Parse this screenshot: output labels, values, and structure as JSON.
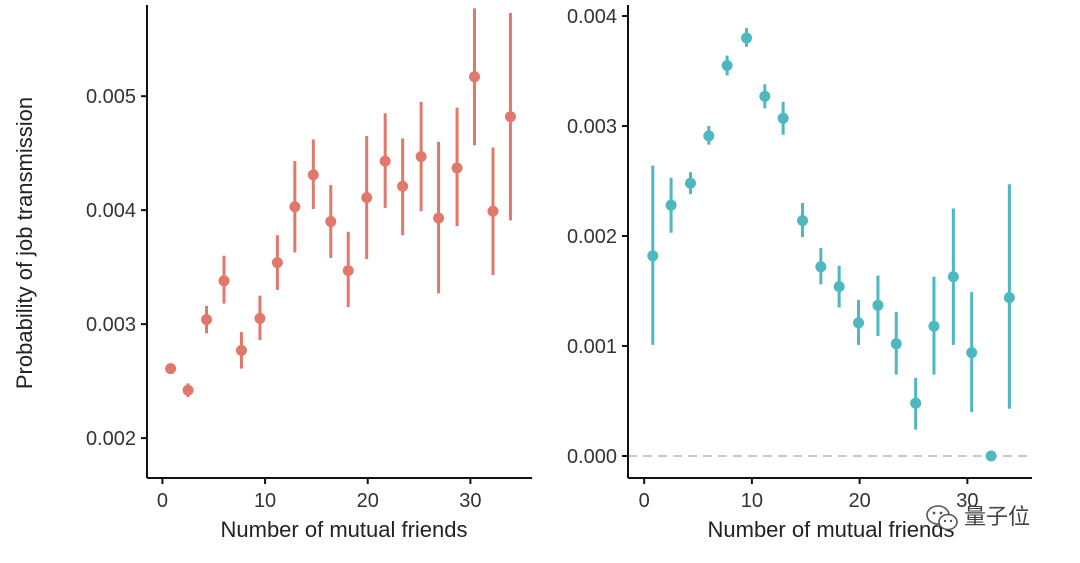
{
  "chart_data": [
    {
      "type": "scatter",
      "series_style": "point-with-error-bars",
      "color": "#e0786b",
      "xlabel": "Number of mutual friends",
      "ylabel": "Probability of job transmission",
      "xlim": [
        -1.5,
        36
      ],
      "ylim": [
        0.00165,
        0.0058
      ],
      "xticks": [
        0,
        10,
        20,
        30
      ],
      "xtick_labels": [
        "0",
        "10",
        "20",
        "30"
      ],
      "yticks": [
        0.002,
        0.003,
        0.004,
        0.005
      ],
      "ytick_labels": [
        "0.002",
        "0.003",
        "0.004",
        "0.005"
      ],
      "points": [
        {
          "x": 0.8,
          "y": 0.00261,
          "lo": 0.00257,
          "hi": 0.00265
        },
        {
          "x": 2.5,
          "y": 0.00242,
          "lo": 0.00236,
          "hi": 0.00248
        },
        {
          "x": 4.3,
          "y": 0.00304,
          "lo": 0.00292,
          "hi": 0.00316
        },
        {
          "x": 6.0,
          "y": 0.00338,
          "lo": 0.00318,
          "hi": 0.0036
        },
        {
          "x": 7.7,
          "y": 0.00277,
          "lo": 0.00261,
          "hi": 0.00293
        },
        {
          "x": 9.5,
          "y": 0.00305,
          "lo": 0.00286,
          "hi": 0.00325
        },
        {
          "x": 11.2,
          "y": 0.00354,
          "lo": 0.0033,
          "hi": 0.00378
        },
        {
          "x": 12.9,
          "y": 0.00403,
          "lo": 0.00363,
          "hi": 0.00443
        },
        {
          "x": 14.7,
          "y": 0.00431,
          "lo": 0.00401,
          "hi": 0.00462
        },
        {
          "x": 16.4,
          "y": 0.0039,
          "lo": 0.00358,
          "hi": 0.00422
        },
        {
          "x": 18.1,
          "y": 0.00347,
          "lo": 0.00315,
          "hi": 0.00381
        },
        {
          "x": 19.9,
          "y": 0.00411,
          "lo": 0.00357,
          "hi": 0.00465
        },
        {
          "x": 21.7,
          "y": 0.00443,
          "lo": 0.00402,
          "hi": 0.00485
        },
        {
          "x": 23.4,
          "y": 0.00421,
          "lo": 0.00378,
          "hi": 0.00463
        },
        {
          "x": 25.2,
          "y": 0.00447,
          "lo": 0.00399,
          "hi": 0.00495
        },
        {
          "x": 26.9,
          "y": 0.00393,
          "lo": 0.00327,
          "hi": 0.0046
        },
        {
          "x": 28.7,
          "y": 0.00437,
          "lo": 0.00386,
          "hi": 0.0049
        },
        {
          "x": 30.4,
          "y": 0.00517,
          "lo": 0.00457,
          "hi": 0.00577
        },
        {
          "x": 32.2,
          "y": 0.00399,
          "lo": 0.00343,
          "hi": 0.00455
        },
        {
          "x": 33.9,
          "y": 0.00482,
          "lo": 0.00391,
          "hi": 0.00573
        }
      ]
    },
    {
      "type": "scatter",
      "series_style": "point-with-error-bars",
      "color": "#4db8bf",
      "xlabel": "Number of mutual friends",
      "ylabel": "",
      "xlim": [
        -1.5,
        36
      ],
      "ylim": [
        -0.0002,
        0.0041
      ],
      "xticks": [
        0,
        10,
        20,
        30
      ],
      "xtick_labels": [
        "0",
        "10",
        "20",
        "30"
      ],
      "yticks": [
        0.0,
        0.001,
        0.002,
        0.003,
        0.004
      ],
      "ytick_labels": [
        "0.000",
        "0.001",
        "0.002",
        "0.003",
        "0.004"
      ],
      "reference_line": {
        "y": 0.0,
        "style": "dashed",
        "color": "#c8c8c8"
      },
      "points": [
        {
          "x": 0.8,
          "y": 0.00182,
          "lo": 0.00101,
          "hi": 0.00264
        },
        {
          "x": 2.5,
          "y": 0.00228,
          "lo": 0.00203,
          "hi": 0.00253
        },
        {
          "x": 4.3,
          "y": 0.00248,
          "lo": 0.00238,
          "hi": 0.00258
        },
        {
          "x": 6.0,
          "y": 0.00291,
          "lo": 0.00283,
          "hi": 0.003
        },
        {
          "x": 7.7,
          "y": 0.00355,
          "lo": 0.00346,
          "hi": 0.00364
        },
        {
          "x": 9.5,
          "y": 0.0038,
          "lo": 0.00372,
          "hi": 0.00389
        },
        {
          "x": 11.2,
          "y": 0.00327,
          "lo": 0.00316,
          "hi": 0.00338
        },
        {
          "x": 12.9,
          "y": 0.00307,
          "lo": 0.00292,
          "hi": 0.00322
        },
        {
          "x": 14.7,
          "y": 0.00214,
          "lo": 0.00199,
          "hi": 0.0023
        },
        {
          "x": 16.4,
          "y": 0.00172,
          "lo": 0.00156,
          "hi": 0.00189
        },
        {
          "x": 18.1,
          "y": 0.00154,
          "lo": 0.00135,
          "hi": 0.00173
        },
        {
          "x": 19.9,
          "y": 0.00121,
          "lo": 0.00101,
          "hi": 0.00142
        },
        {
          "x": 21.7,
          "y": 0.00137,
          "lo": 0.00109,
          "hi": 0.00164
        },
        {
          "x": 23.4,
          "y": 0.00102,
          "lo": 0.00074,
          "hi": 0.00131
        },
        {
          "x": 25.2,
          "y": 0.00048,
          "lo": 0.00024,
          "hi": 0.00071
        },
        {
          "x": 26.9,
          "y": 0.00118,
          "lo": 0.00074,
          "hi": 0.00163
        },
        {
          "x": 28.7,
          "y": 0.00163,
          "lo": 0.00101,
          "hi": 0.00225
        },
        {
          "x": 30.4,
          "y": 0.00094,
          "lo": 0.0004,
          "hi": 0.00149
        },
        {
          "x": 32.2,
          "y": 0.0,
          "lo": 0.0,
          "hi": 0.0
        },
        {
          "x": 33.9,
          "y": 0.00144,
          "lo": 0.00043,
          "hi": 0.00247
        }
      ]
    }
  ],
  "watermark": {
    "text": "量子位",
    "icon": "wechat-icon"
  }
}
